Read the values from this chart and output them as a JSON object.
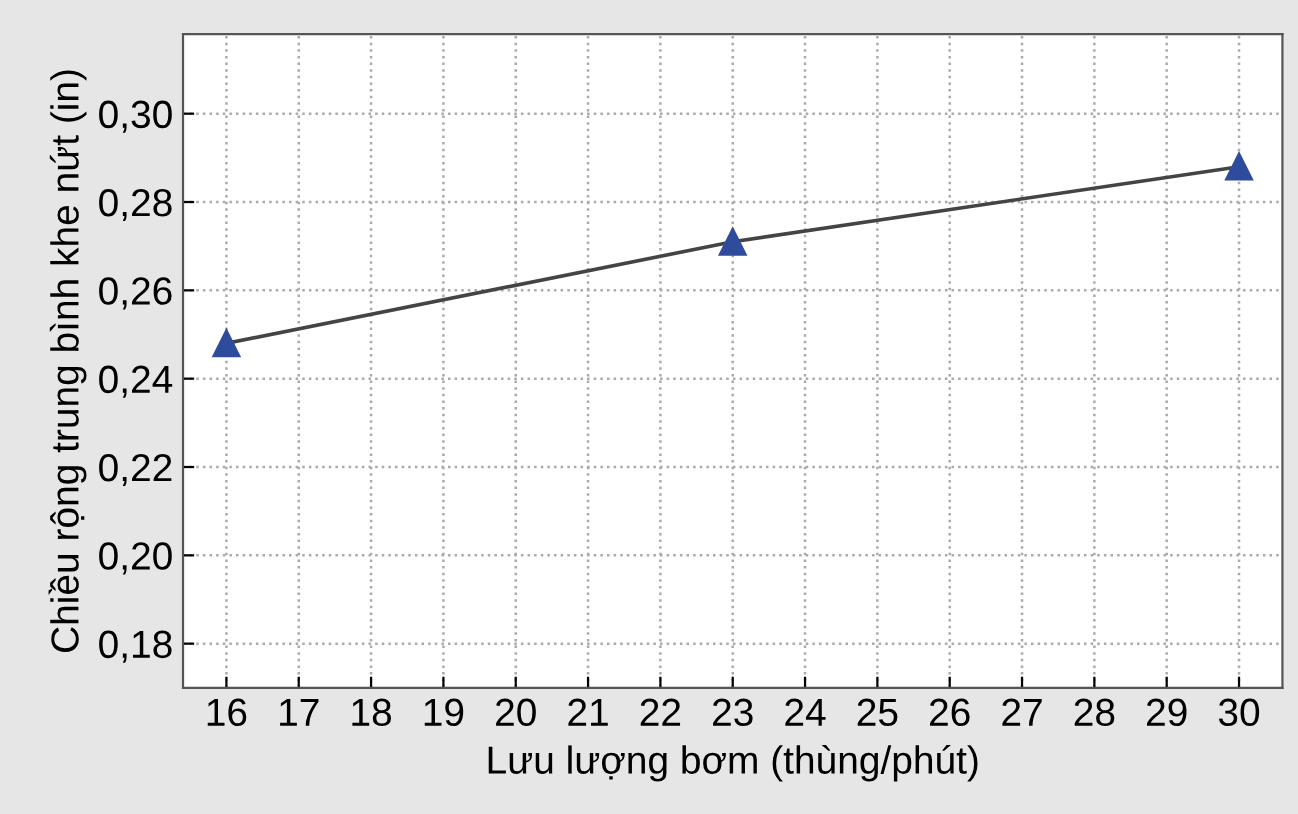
{
  "chart_data": {
    "type": "line",
    "xlabel": "Lưu lượng bơm (thùng/phút)",
    "ylabel": "Chiều rộng trung bình khe nứt (in)",
    "x": [
      16,
      23,
      30
    ],
    "series": [
      {
        "color": "#2f4b9b",
        "values": [
          0.248,
          0.271,
          0.288
        ]
      }
    ],
    "xlim": [
      15.4,
      30.6
    ],
    "xticks": [
      16,
      17,
      18,
      19,
      20,
      21,
      22,
      23,
      24,
      25,
      26,
      27,
      28,
      29,
      30
    ],
    "ylim": [
      0.17,
      0.318
    ],
    "yticks": [
      {
        "value": 0.18,
        "label": "0,18"
      },
      {
        "value": 0.2,
        "label": "0,20"
      },
      {
        "value": 0.22,
        "label": "0,22"
      },
      {
        "value": 0.24,
        "label": "0,24"
      },
      {
        "value": 0.26,
        "label": "0,26"
      },
      {
        "value": 0.28,
        "label": "0,28"
      },
      {
        "value": 0.3,
        "label": "0,30"
      }
    ],
    "grid": true,
    "marker": "triangle",
    "line_style": "solid",
    "legend": false
  }
}
